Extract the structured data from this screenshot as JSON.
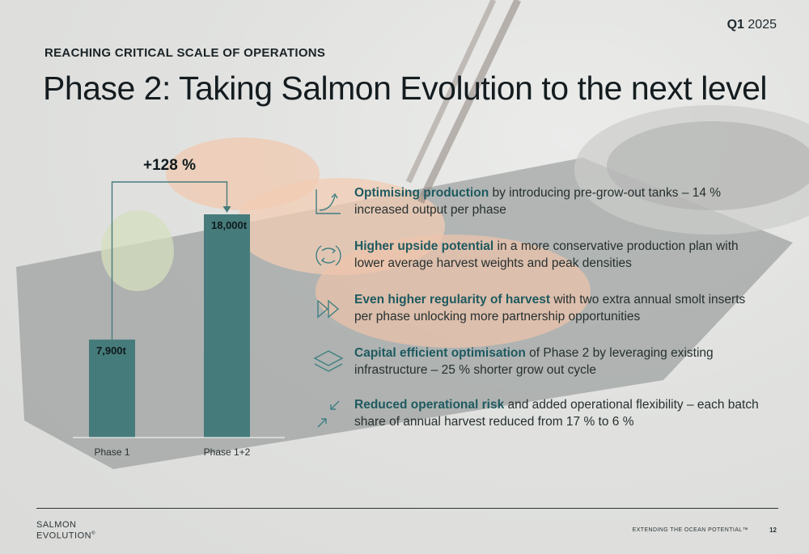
{
  "header": {
    "quarter_bold": "Q1",
    "quarter_year": "2025",
    "kicker": "REACHING CRITICAL SCALE OF OPERATIONS",
    "title": "Phase 2: Taking Salmon Evolution to the next level"
  },
  "chart_data": {
    "type": "bar",
    "categories": [
      "Phase 1",
      "Phase 1+2"
    ],
    "values": [
      7900,
      18000
    ],
    "data_labels": [
      "7,900t",
      "18,000t"
    ],
    "annotation": "+128 %",
    "bar_color": "#467b7b",
    "grid": false,
    "legend": "none"
  },
  "benefits": [
    {
      "icon": "growth-curve-icon",
      "bold": "Optimising production",
      "rest": " by introducing pre-grow-out tanks – 14 % increased output per phase"
    },
    {
      "icon": "cycle-arrows-icon",
      "bold": "Higher upside potential",
      "rest": " in a more conservative production plan with lower average harvest weights and peak densities"
    },
    {
      "icon": "fast-forward-icon",
      "bold": "Even higher regularity of harvest",
      "rest": " with two extra annual smolt inserts per phase unlocking more partnership opportunities"
    },
    {
      "icon": "layers-icon",
      "bold": "Capital efficient optimisation",
      "rest": " of Phase 2 by leveraging existing infrastructure – 25 % shorter grow out cycle"
    },
    {
      "icon": "converging-arrows-icon",
      "bold": "Reduced operational risk",
      "rest": " and added operational flexibility – each batch share of annual harvest reduced from 17 % to 6 %"
    }
  ],
  "footer": {
    "logo_line1": "SALMON",
    "logo_line2": "EVOLUTION",
    "logo_tm": "®",
    "tagline": "EXTENDING THE OCEAN POTENTIAL™",
    "page": "12"
  },
  "colors": {
    "accent": "#1e5a60",
    "bar": "#467b7b",
    "icon": "#3f7f82"
  }
}
